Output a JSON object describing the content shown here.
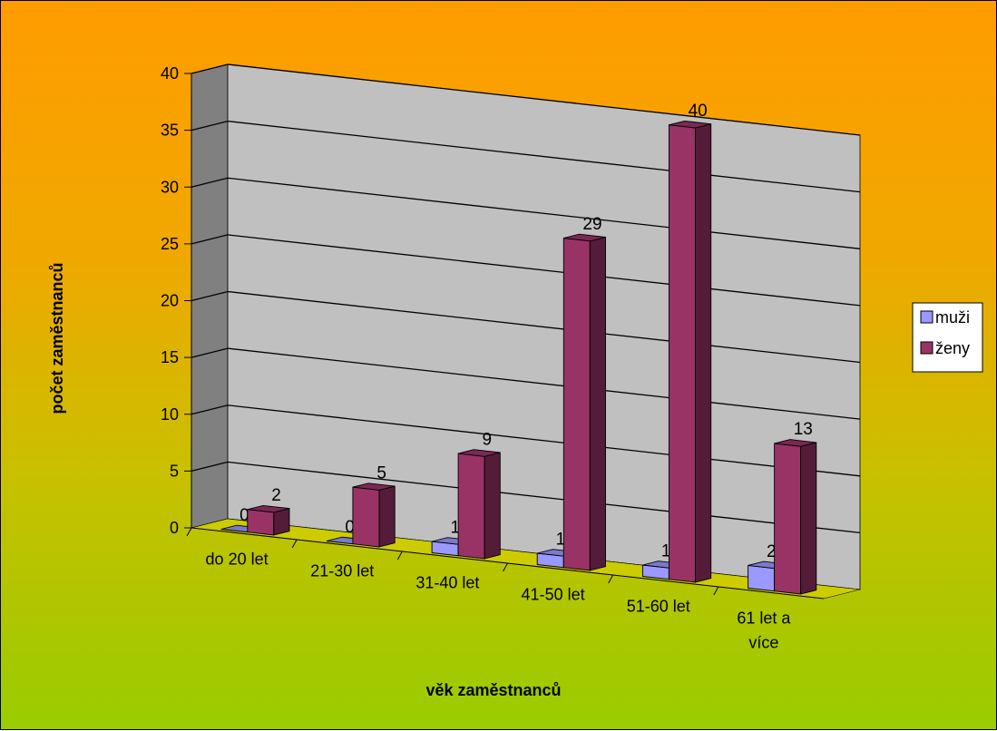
{
  "chart_data": {
    "type": "bar",
    "title": "",
    "xlabel": "věk zaměstnanců",
    "ylabel": "počet zaměstnanců",
    "ylim": [
      0,
      40
    ],
    "yticks": [
      0,
      5,
      10,
      15,
      20,
      25,
      30,
      35,
      40
    ],
    "categories": [
      [
        "do 20 let"
      ],
      [
        "21-30 let"
      ],
      [
        "31-40 let"
      ],
      [
        "41-50 let"
      ],
      [
        "51-60 let"
      ],
      [
        "61 let a",
        "více"
      ]
    ],
    "series": [
      {
        "name": "muži",
        "values": [
          0,
          0,
          1,
          1,
          1,
          2
        ],
        "color": "#9999ff"
      },
      {
        "name": "ženy",
        "values": [
          2,
          5,
          9,
          29,
          40,
          13
        ],
        "color": "#993366"
      }
    ],
    "legend_position": "right",
    "grid": true,
    "style": "3d-clustered-column",
    "colors": {
      "wall": "#c0c0c0",
      "side_wall": "#808080",
      "floor": "#cccc00",
      "background_top": "#ff9c00",
      "background_bottom": "#99cc00"
    }
  }
}
